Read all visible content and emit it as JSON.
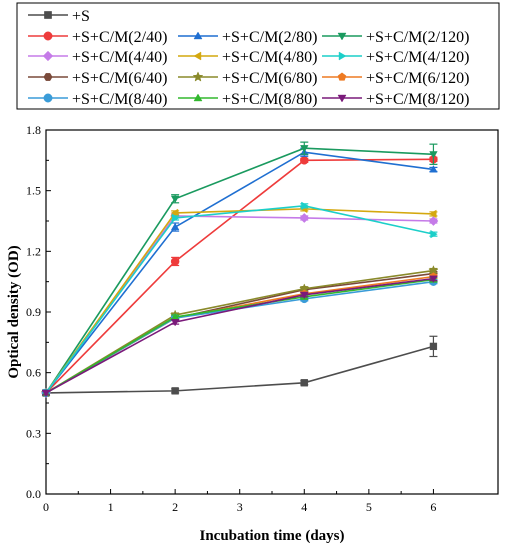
{
  "chart_data": {
    "type": "line",
    "title": "",
    "xlabel": "Incubation time (days)",
    "ylabel": "Optical density (OD)",
    "xlim": [
      0,
      7
    ],
    "ylim": [
      0,
      1.8
    ],
    "xticks": [
      "0",
      "1",
      "2",
      "3",
      "4",
      "5",
      "6"
    ],
    "yticks": [
      "0.0",
      "0.3",
      "0.6",
      "0.9",
      "1.2",
      "1.5",
      "1.8"
    ],
    "x": [
      0,
      2,
      4,
      6
    ],
    "grid": false,
    "legend_position": "top",
    "series": [
      {
        "name": "+S",
        "color": "#4d4d4d",
        "marker": "square",
        "values": [
          0.5,
          0.51,
          0.55,
          0.73
        ],
        "errors": [
          0.01,
          0.01,
          0.01,
          0.05
        ]
      },
      {
        "name": "+S+C/M(2/40)",
        "color": "#ee3b3b",
        "marker": "circle",
        "values": [
          0.5,
          1.15,
          1.65,
          1.655
        ],
        "errors": [
          0.01,
          0.02,
          0.01,
          0.01
        ]
      },
      {
        "name": "+S+C/M(2/80)",
        "color": "#1f6fd1",
        "marker": "triangle-up",
        "values": [
          0.5,
          1.32,
          1.69,
          1.605
        ],
        "errors": [
          0.01,
          0.02,
          0.02,
          0.01
        ]
      },
      {
        "name": "+S+C/M(2/120)",
        "color": "#1a9a5f",
        "marker": "triangle-down",
        "values": [
          0.5,
          1.46,
          1.71,
          1.68
        ],
        "errors": [
          0.01,
          0.02,
          0.03,
          0.05
        ]
      },
      {
        "name": "+S+C/M(4/40)",
        "color": "#c57be8",
        "marker": "diamond",
        "values": [
          0.5,
          1.375,
          1.365,
          1.35
        ],
        "errors": [
          0.01,
          0.01,
          0.01,
          0.01
        ]
      },
      {
        "name": "+S+C/M(4/80)",
        "color": "#d4a80f",
        "marker": "triangle-left",
        "values": [
          0.5,
          1.39,
          1.41,
          1.385
        ],
        "errors": [
          0.01,
          0.01,
          0.01,
          0.01
        ]
      },
      {
        "name": "+S+C/M(4/120)",
        "color": "#1ccfc9",
        "marker": "triangle-right",
        "values": [
          0.5,
          1.365,
          1.425,
          1.285
        ],
        "errors": [
          0.01,
          0.01,
          0.01,
          0.01
        ]
      },
      {
        "name": "+S+C/M(6/40)",
        "color": "#7a4a3a",
        "marker": "hexagon",
        "values": [
          0.5,
          0.87,
          1.01,
          1.09
        ],
        "errors": [
          0.01,
          0.01,
          0.01,
          0.01
        ]
      },
      {
        "name": "+S+C/M(6/80)",
        "color": "#8a8a2a",
        "marker": "star",
        "values": [
          0.5,
          0.885,
          1.015,
          1.105
        ],
        "errors": [
          0.01,
          0.01,
          0.01,
          0.01
        ]
      },
      {
        "name": "+S+C/M(6/120)",
        "color": "#ee7a22",
        "marker": "pentagon",
        "values": [
          0.5,
          0.87,
          0.99,
          1.075
        ],
        "errors": [
          0.01,
          0.01,
          0.01,
          0.01
        ]
      },
      {
        "name": "+S+C/M(8/40)",
        "color": "#3a9cd8",
        "marker": "circle",
        "values": [
          0.5,
          0.87,
          0.965,
          1.05
        ],
        "errors": [
          0.01,
          0.01,
          0.01,
          0.01
        ]
      },
      {
        "name": "+S+C/M(8/80)",
        "color": "#32b82e",
        "marker": "triangle-up",
        "values": [
          0.5,
          0.875,
          0.975,
          1.06
        ],
        "errors": [
          0.01,
          0.01,
          0.01,
          0.01
        ]
      },
      {
        "name": "+S+C/M(8/120)",
        "color": "#7a1a7a",
        "marker": "triangle-down",
        "values": [
          0.5,
          0.85,
          0.985,
          1.065
        ],
        "errors": [
          0.01,
          0.01,
          0.01,
          0.01
        ]
      }
    ]
  }
}
